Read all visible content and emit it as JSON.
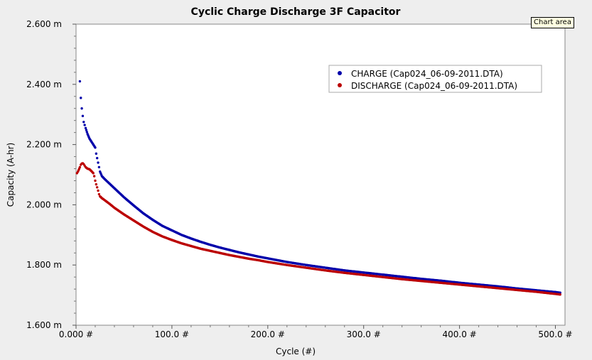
{
  "tooltip": "Chart area",
  "chart_data": {
    "type": "scatter",
    "title": "Cyclic Charge Discharge 3F Capacitor",
    "xlabel": "Cycle (#)",
    "ylabel": "Capacity (A-hr)",
    "xlim": [
      0,
      510
    ],
    "ylim": [
      1.6,
      2.6
    ],
    "x_ticks": [
      0,
      100,
      200,
      300,
      400,
      500
    ],
    "x_tick_labels": [
      "0.000 #",
      "100.0 #",
      "200.0 #",
      "300.0 #",
      "400.0 #",
      "500.0 #"
    ],
    "y_ticks": [
      1.6,
      1.8,
      2.0,
      2.2,
      2.4,
      2.6
    ],
    "y_tick_labels": [
      "1.600 m",
      "1.800 m",
      "2.000 m",
      "2.200 m",
      "2.400 m",
      "2.600 m"
    ],
    "legend_position": "top-right",
    "series": [
      {
        "name": "CHARGE (Cap024_06-09-2011.DTA)",
        "color": "#0000aa",
        "points": [
          [
            4,
            2.41
          ],
          [
            5,
            2.355
          ],
          [
            6,
            2.32
          ],
          [
            7,
            2.295
          ],
          [
            8,
            2.275
          ],
          [
            9,
            2.265
          ],
          [
            10,
            2.255
          ],
          [
            12,
            2.235
          ],
          [
            14,
            2.22
          ],
          [
            16,
            2.21
          ],
          [
            18,
            2.2
          ],
          [
            20,
            2.19
          ],
          [
            21,
            2.17
          ],
          [
            22,
            2.155
          ],
          [
            23,
            2.14
          ],
          [
            24,
            2.125
          ],
          [
            25,
            2.11
          ],
          [
            27,
            2.095
          ],
          [
            30,
            2.085
          ],
          [
            35,
            2.07
          ],
          [
            40,
            2.055
          ],
          [
            50,
            2.025
          ],
          [
            60,
            1.998
          ],
          [
            70,
            1.972
          ],
          [
            80,
            1.95
          ],
          [
            90,
            1.93
          ],
          [
            100,
            1.915
          ],
          [
            110,
            1.9
          ],
          [
            120,
            1.888
          ],
          [
            130,
            1.877
          ],
          [
            140,
            1.867
          ],
          [
            150,
            1.858
          ],
          [
            160,
            1.85
          ],
          [
            170,
            1.842
          ],
          [
            180,
            1.835
          ],
          [
            190,
            1.828
          ],
          [
            200,
            1.822
          ],
          [
            220,
            1.81
          ],
          [
            240,
            1.8
          ],
          [
            260,
            1.791
          ],
          [
            280,
            1.782
          ],
          [
            300,
            1.775
          ],
          [
            320,
            1.768
          ],
          [
            340,
            1.761
          ],
          [
            360,
            1.754
          ],
          [
            380,
            1.748
          ],
          [
            400,
            1.741
          ],
          [
            420,
            1.735
          ],
          [
            440,
            1.729
          ],
          [
            460,
            1.722
          ],
          [
            480,
            1.716
          ],
          [
            500,
            1.71
          ],
          [
            505,
            1.708
          ]
        ]
      },
      {
        "name": "DISCHARGE (Cap024_06-09-2011.DTA)",
        "color": "#bb0000",
        "points": [
          [
            1,
            2.105
          ],
          [
            2,
            2.11
          ],
          [
            4,
            2.125
          ],
          [
            5,
            2.133
          ],
          [
            6,
            2.137
          ],
          [
            7,
            2.138
          ],
          [
            8,
            2.135
          ],
          [
            9,
            2.13
          ],
          [
            10,
            2.125
          ],
          [
            12,
            2.12
          ],
          [
            14,
            2.118
          ],
          [
            16,
            2.112
          ],
          [
            18,
            2.105
          ],
          [
            19,
            2.095
          ],
          [
            20,
            2.08
          ],
          [
            21,
            2.068
          ],
          [
            22,
            2.058
          ],
          [
            23,
            2.047
          ],
          [
            24,
            2.035
          ],
          [
            25,
            2.028
          ],
          [
            27,
            2.022
          ],
          [
            30,
            2.015
          ],
          [
            35,
            2.003
          ],
          [
            40,
            1.99
          ],
          [
            50,
            1.968
          ],
          [
            60,
            1.948
          ],
          [
            70,
            1.928
          ],
          [
            80,
            1.91
          ],
          [
            90,
            1.895
          ],
          [
            100,
            1.883
          ],
          [
            110,
            1.872
          ],
          [
            120,
            1.863
          ],
          [
            130,
            1.854
          ],
          [
            140,
            1.847
          ],
          [
            150,
            1.84
          ],
          [
            160,
            1.833
          ],
          [
            170,
            1.827
          ],
          [
            180,
            1.821
          ],
          [
            190,
            1.816
          ],
          [
            200,
            1.81
          ],
          [
            220,
            1.8
          ],
          [
            240,
            1.791
          ],
          [
            260,
            1.782
          ],
          [
            280,
            1.774
          ],
          [
            300,
            1.767
          ],
          [
            320,
            1.76
          ],
          [
            340,
            1.753
          ],
          [
            360,
            1.747
          ],
          [
            380,
            1.741
          ],
          [
            400,
            1.735
          ],
          [
            420,
            1.729
          ],
          [
            440,
            1.723
          ],
          [
            460,
            1.717
          ],
          [
            480,
            1.711
          ],
          [
            500,
            1.704
          ],
          [
            505,
            1.702
          ]
        ]
      }
    ]
  }
}
